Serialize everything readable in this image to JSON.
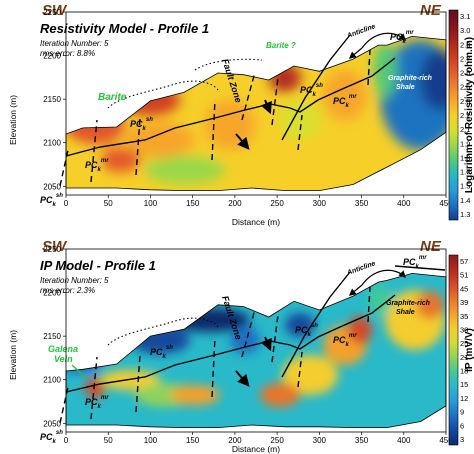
{
  "chart_data": [
    {
      "type": "heatmap",
      "title": "Resistivity Model - Profile 1",
      "subtitle_lines": [
        "Iteration Number: 5",
        "rms error: 8.8%"
      ],
      "left_label": "SW",
      "right_label": "NE",
      "xlabel": "Distance (m)",
      "ylabel": "Elevation (m)",
      "xlim": [
        0,
        450
      ],
      "ylim": [
        2040,
        2250
      ],
      "xticks": [
        0,
        50,
        100,
        150,
        200,
        250,
        300,
        350,
        400,
        450
      ],
      "yticks": [
        2050,
        2100,
        2150,
        2200,
        2250
      ],
      "colorbar": {
        "label": "Logarithm of Resistivity (ohm.m)",
        "ticks": [
          "3.1",
          "3.0",
          "2.9",
          "2.7",
          "2.6",
          "2.5",
          "2.3",
          "2.2",
          "2.1",
          "1.9",
          "1.8",
          "1.7",
          "1.5",
          "1.4",
          "1.3"
        ]
      },
      "annotations": {
        "barite": "Barite",
        "barite_q": "Barite ?",
        "fault_zone": "Fault Zone",
        "anticline": "Anticline",
        "graphite": [
          "Graphite-rich",
          "Shale"
        ],
        "pc": "PC",
        "sub_k": "k",
        "sup_sh": "sh",
        "sup_mr": "mr"
      }
    },
    {
      "type": "heatmap",
      "title": "IP Model - Profile 1",
      "subtitle_lines": [
        "Iteration Number: 5",
        "rms error: 2.3%"
      ],
      "left_label": "SW",
      "right_label": "NE",
      "xlabel": "Distance (m)",
      "ylabel": "Elevation (m)",
      "xlim": [
        0,
        450
      ],
      "ylim": [
        2040,
        2250
      ],
      "xticks": [
        0,
        50,
        100,
        150,
        200,
        250,
        300,
        350,
        400,
        450
      ],
      "yticks": [
        2050,
        2100,
        2150,
        2200,
        2250
      ],
      "colorbar": {
        "label": "IP (mV/V)",
        "ticks": [
          "57",
          "51",
          "45",
          "39",
          "35",
          "30",
          "25",
          "21",
          "18",
          "15",
          "12",
          "9",
          "6",
          "3"
        ]
      },
      "annotations": {
        "galena": [
          "Galena",
          "Vein"
        ],
        "fault_zone": "Fault Zone",
        "anticline": "Anticline",
        "graphite": [
          "Graphite-rich",
          "Shale"
        ],
        "pc": "PC",
        "sub_k": "k",
        "sup_sh": "sh",
        "sup_mr": "mr"
      }
    }
  ],
  "palettes": {
    "resistivity": [
      "#123c8c",
      "#1c73c0",
      "#2a9bd6",
      "#23b8c4",
      "#52c978",
      "#9ad84a",
      "#d9df2f",
      "#f6cf29",
      "#f7a62a",
      "#ef7d2c",
      "#e3562a",
      "#c93a1f",
      "#a5261a",
      "#80161b",
      "#5f0f1f"
    ],
    "ip": [
      "#0b2a6e",
      "#14489d",
      "#1f6fc4",
      "#2a9ad8",
      "#29b9c9",
      "#41c99a",
      "#8fd25b",
      "#d3dc37",
      "#f4cd2d",
      "#f3a12c",
      "#e8742b",
      "#d54827",
      "#b32a20",
      "#8c1a1c"
    ]
  }
}
